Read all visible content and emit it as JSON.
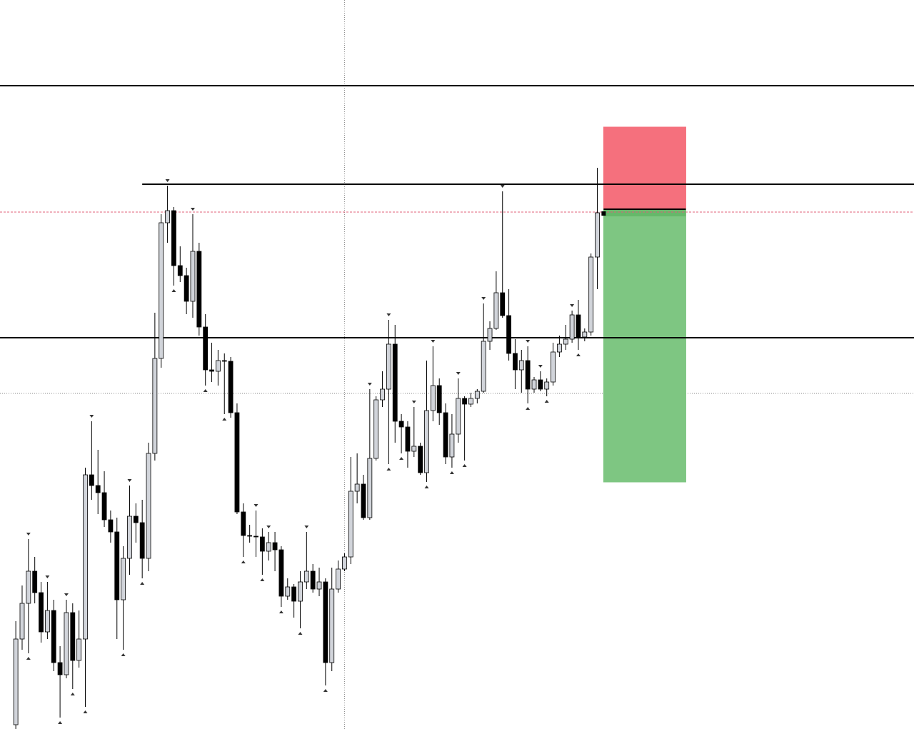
{
  "chart_data": {
    "type": "candlestick",
    "xlim": [
      -2.5,
      142.1
    ],
    "ylim": [
      0,
      1021
    ],
    "up_color": "#d1d4da",
    "down_color": "#000000",
    "open": [
      6,
      126,
      176,
      221,
      191,
      136,
      166,
      93,
      76,
      163,
      96,
      126,
      356,
      341,
      331,
      293,
      276,
      181,
      239,
      298,
      289,
      239,
      386,
      519,
      709,
      726,
      649,
      635,
      599,
      669,
      563,
      503,
      501,
      516,
      515,
      443,
      304,
      271,
      270,
      269,
      249,
      261,
      251,
      186,
      199,
      179,
      206,
      221,
      196,
      206,
      93,
      196,
      224,
      241,
      333,
      343,
      296,
      379,
      461,
      476,
      539,
      431,
      423,
      389,
      396,
      359,
      446,
      481,
      443,
      381,
      413,
      463,
      455,
      463,
      473,
      543,
      561,
      611,
      579,
      526,
      503,
      516,
      476,
      489,
      476,
      486,
      528,
      539,
      546,
      580,
      549,
      556,
      661
    ],
    "high": [
      151,
      201,
      266,
      241,
      206,
      206,
      181,
      116,
      181,
      176,
      166,
      366,
      431,
      391,
      361,
      306,
      296,
      256,
      341,
      316,
      321,
      401,
      583,
      721,
      761,
      731,
      676,
      646,
      721,
      681,
      581,
      541,
      531,
      526,
      521,
      456,
      316,
      286,
      306,
      281,
      276,
      276,
      256,
      211,
      203,
      221,
      276,
      231,
      226,
      211,
      226,
      236,
      246,
      381,
      386,
      356,
      476,
      466,
      501,
      573,
      566,
      441,
      431,
      451,
      401,
      516,
      536,
      491,
      456,
      441,
      491,
      466,
      471,
      476,
      596,
      571,
      641,
      753,
      616,
      546,
      531,
      536,
      493,
      501,
      491,
      541,
      551,
      566,
      586,
      601,
      561,
      666,
      786
    ],
    "low": [
      0,
      111,
      106,
      176,
      121,
      126,
      81,
      16,
      71,
      56,
      86,
      31,
      321,
      301,
      283,
      261,
      126,
      111,
      216,
      261,
      211,
      221,
      376,
      506,
      681,
      621,
      626,
      581,
      576,
      551,
      481,
      486,
      481,
      441,
      436,
      301,
      241,
      261,
      241,
      216,
      236,
      221,
      171,
      181,
      156,
      141,
      196,
      191,
      186,
      61,
      81,
      191,
      221,
      231,
      316,
      293,
      293,
      376,
      451,
      371,
      401,
      386,
      366,
      381,
      356,
      346,
      431,
      426,
      371,
      366,
      401,
      376,
      451,
      456,
      471,
      531,
      559,
      576,
      516,
      476,
      471,
      456,
      471,
      473,
      466,
      481,
      521,
      531,
      541,
      531,
      543,
      551,
      616
    ],
    "close": [
      126,
      176,
      221,
      191,
      136,
      166,
      93,
      76,
      163,
      96,
      126,
      356,
      341,
      331,
      293,
      276,
      181,
      239,
      298,
      289,
      239,
      386,
      519,
      709,
      726,
      649,
      635,
      599,
      669,
      563,
      503,
      501,
      516,
      515,
      443,
      304,
      271,
      270,
      269,
      249,
      261,
      251,
      186,
      199,
      179,
      206,
      221,
      196,
      206,
      93,
      196,
      224,
      241,
      333,
      343,
      296,
      379,
      461,
      476,
      539,
      431,
      423,
      389,
      396,
      359,
      446,
      481,
      443,
      381,
      413,
      463,
      455,
      463,
      473,
      543,
      561,
      611,
      579,
      526,
      503,
      516,
      476,
      489,
      476,
      486,
      528,
      539,
      546,
      580,
      549,
      556,
      661,
      723
    ],
    "fractal_highs": [
      2,
      5,
      8,
      12,
      18,
      24,
      28,
      38,
      40,
      46,
      56,
      59,
      63,
      66,
      70,
      74,
      77,
      81,
      83,
      88
    ],
    "fractal_lows": [
      2,
      7,
      9,
      11,
      17,
      20,
      25,
      30,
      33,
      36,
      39,
      42,
      45,
      49,
      59,
      61,
      65,
      69,
      71,
      81,
      84,
      89
    ],
    "levels": [
      {
        "value": 901,
        "start": -2.5,
        "color": "#000000"
      },
      {
        "value": 763,
        "start": 20,
        "color": "#000000"
      },
      {
        "value": 548,
        "start": -2.5,
        "color": "#000000"
      }
    ],
    "price_line": {
      "value": 724,
      "color": "#e0607a"
    },
    "crosshair": {
      "x": 52,
      "y": 470
    },
    "position": {
      "entry": 728,
      "stop": 843,
      "target": 346,
      "start": 93,
      "end": 106,
      "stop_color": "#f5707d",
      "target_color": "#7ec682"
    }
  }
}
